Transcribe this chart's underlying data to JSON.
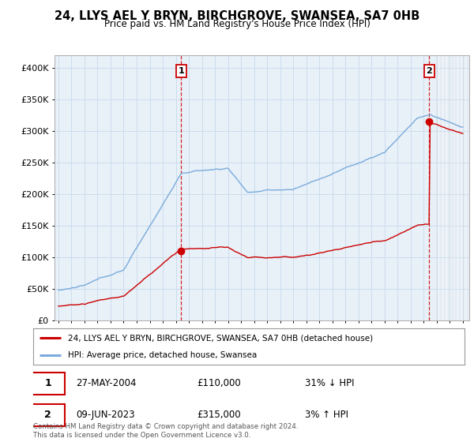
{
  "title": "24, LLYS AEL Y BRYN, BIRCHGROVE, SWANSEA, SA7 0HB",
  "subtitle": "Price paid vs. HM Land Registry's House Price Index (HPI)",
  "ylim": [
    0,
    420000
  ],
  "yticks": [
    0,
    50000,
    100000,
    150000,
    200000,
    250000,
    300000,
    350000,
    400000
  ],
  "ytick_labels": [
    "£0",
    "£50K",
    "£100K",
    "£150K",
    "£200K",
    "£250K",
    "£300K",
    "£350K",
    "£400K"
  ],
  "sale1_date": 2004.41,
  "sale1_price": 110000,
  "sale1_label": "1",
  "sale2_date": 2023.44,
  "sale2_price": 315000,
  "sale2_label": "2",
  "line_color_property": "#cc0000",
  "line_color_hpi": "#7aabdc",
  "grid_color": "#ccddee",
  "plot_bg_color": "#e8f0f8",
  "background_color": "#ffffff",
  "legend_label_property": "24, LLYS AEL Y BRYN, BIRCHGROVE, SWANSEA, SA7 0HB (detached house)",
  "legend_label_hpi": "HPI: Average price, detached house, Swansea",
  "annotation1_date": "27-MAY-2004",
  "annotation1_price": "£110,000",
  "annotation1_hpi": "31% ↓ HPI",
  "annotation2_date": "09-JUN-2023",
  "annotation2_price": "£315,000",
  "annotation2_hpi": "3% ↑ HPI",
  "footer": "Contains HM Land Registry data © Crown copyright and database right 2024.\nThis data is licensed under the Open Government Licence v3.0.",
  "xmin": 1995,
  "xmax": 2026
}
